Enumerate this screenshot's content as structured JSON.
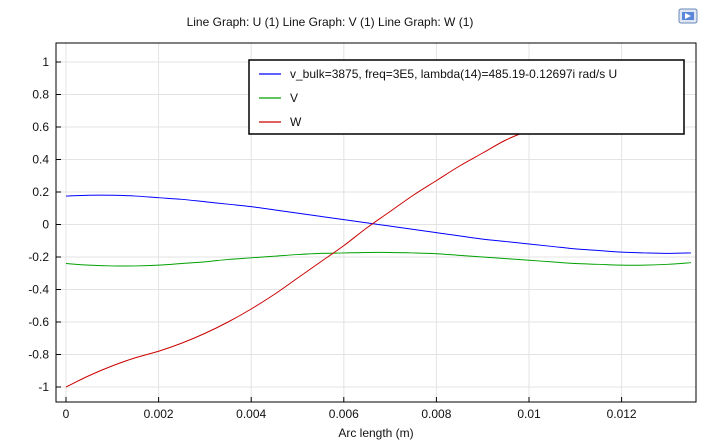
{
  "chart_data": {
    "type": "line",
    "title": "Line Graph: U (1)  Line Graph: V (1)  Line Graph: W (1)",
    "xlabel": "Arc length (m)",
    "ylabel": "",
    "xlim": [
      0,
      0.0135
    ],
    "ylim": [
      -1,
      1
    ],
    "xticks": [
      0,
      0.002,
      0.004,
      0.006,
      0.008,
      0.01,
      0.012
    ],
    "xtick_labels": [
      "0",
      "0.002",
      "0.004",
      "0.006",
      "0.008",
      "0.01",
      "0.012"
    ],
    "yticks": [
      1,
      0.8,
      0.6,
      0.4,
      0.2,
      0,
      -0.2,
      -0.4,
      -0.6,
      -0.8,
      -1
    ],
    "ytick_labels": [
      "1",
      "0.8",
      "0.6",
      "0.4",
      "0.2",
      "0",
      "-0.2",
      "-0.4",
      "-0.6",
      "-0.8",
      "-1"
    ],
    "grid": true,
    "legend_position": "top-right",
    "series": [
      {
        "name": "v_bulk=3875, freq=3E5, lambda(14)=485.19-0.12697i rad/s U",
        "color": "#0000ff",
        "x": [
          0,
          0.0005,
          0.001,
          0.0015,
          0.002,
          0.0025,
          0.003,
          0.0035,
          0.004,
          0.0045,
          0.005,
          0.0055,
          0.006,
          0.0065,
          0.007,
          0.0075,
          0.008,
          0.0085,
          0.009,
          0.0095,
          0.01,
          0.0105,
          0.011,
          0.0115,
          0.012,
          0.0125,
          0.013,
          0.0135
        ],
        "y": [
          0.175,
          0.18,
          0.18,
          0.175,
          0.165,
          0.155,
          0.14,
          0.125,
          0.11,
          0.09,
          0.07,
          0.05,
          0.03,
          0.01,
          -0.01,
          -0.03,
          -0.05,
          -0.07,
          -0.09,
          -0.105,
          -0.12,
          -0.135,
          -0.15,
          -0.16,
          -0.17,
          -0.175,
          -0.178,
          -0.175
        ]
      },
      {
        "name": "V",
        "color": "#00a000",
        "x": [
          0,
          0.0005,
          0.001,
          0.0015,
          0.002,
          0.0025,
          0.003,
          0.0035,
          0.004,
          0.0045,
          0.005,
          0.0055,
          0.006,
          0.0065,
          0.007,
          0.0075,
          0.008,
          0.0085,
          0.009,
          0.0095,
          0.01,
          0.0105,
          0.011,
          0.0115,
          0.012,
          0.0125,
          0.013,
          0.0135
        ],
        "y": [
          -0.24,
          -0.25,
          -0.255,
          -0.255,
          -0.25,
          -0.24,
          -0.23,
          -0.215,
          -0.205,
          -0.195,
          -0.185,
          -0.178,
          -0.175,
          -0.172,
          -0.172,
          -0.175,
          -0.18,
          -0.19,
          -0.2,
          -0.21,
          -0.22,
          -0.23,
          -0.24,
          -0.245,
          -0.25,
          -0.25,
          -0.245,
          -0.235
        ]
      },
      {
        "name": "W",
        "color": "#cc0000",
        "x": [
          0,
          0.0005,
          0.001,
          0.0015,
          0.002,
          0.0025,
          0.003,
          0.0035,
          0.004,
          0.0045,
          0.005,
          0.0055,
          0.006,
          0.0065,
          0.007,
          0.0075,
          0.008,
          0.0085,
          0.009,
          0.0095,
          0.01,
          0.0105
        ],
        "y": [
          -1.0,
          -0.93,
          -0.87,
          -0.82,
          -0.78,
          -0.73,
          -0.67,
          -0.6,
          -0.52,
          -0.43,
          -0.33,
          -0.23,
          -0.13,
          -0.02,
          0.08,
          0.18,
          0.27,
          0.36,
          0.44,
          0.52,
          0.58,
          0.64
        ]
      }
    ]
  },
  "toolbar": {
    "icon_name": "graph-export-icon"
  }
}
